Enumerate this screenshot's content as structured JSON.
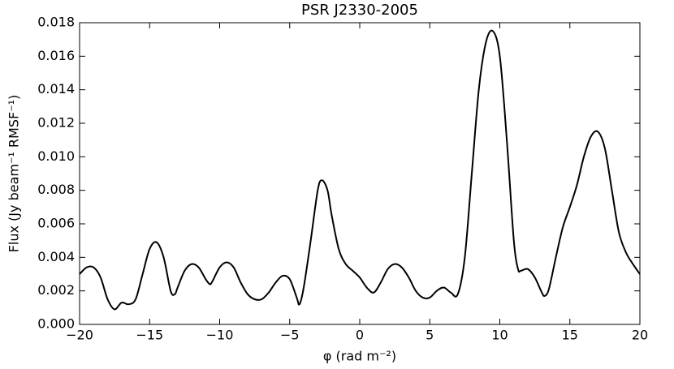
{
  "chart_data": {
    "type": "line",
    "title": "PSR J2330-2005",
    "xlabel": "φ (rad m⁻²)",
    "ylabel": "Flux (Jy beam⁻¹ RMSF⁻¹)",
    "x": [
      -20,
      -19.5,
      -19,
      -18.5,
      -18,
      -17.5,
      -17,
      -16.5,
      -16,
      -15.5,
      -15,
      -14.5,
      -14,
      -13.5,
      -13.2,
      -13,
      -12.5,
      -12,
      -11.5,
      -11,
      -10.7,
      -10.5,
      -10,
      -9.5,
      -9,
      -8.5,
      -8,
      -7.5,
      -7,
      -6.5,
      -6,
      -5.5,
      -5,
      -4.5,
      -4.3,
      -4,
      -3.5,
      -3,
      -2.7,
      -2.3,
      -2,
      -1.5,
      -1,
      -0.5,
      0,
      0.5,
      1,
      1.5,
      2,
      2.5,
      3,
      3.5,
      4,
      4.5,
      5,
      5.5,
      6,
      6.5,
      7,
      7.5,
      8,
      8.5,
      9,
      9.5,
      10,
      10.5,
      11,
      11.3,
      11.5,
      12,
      12.5,
      13,
      13.2,
      13.5,
      14,
      14.5,
      15,
      15.5,
      16,
      16.5,
      17,
      17.5,
      18,
      18.5,
      19,
      19.5,
      20
    ],
    "series": [
      {
        "name": "flux",
        "color": "#000000",
        "values": [
          0.003,
          0.0034,
          0.0034,
          0.0028,
          0.0015,
          0.0009,
          0.0013,
          0.0012,
          0.0015,
          0.003,
          0.0045,
          0.0049,
          0.004,
          0.002,
          0.0018,
          0.0022,
          0.0032,
          0.0036,
          0.0034,
          0.0027,
          0.0024,
          0.0026,
          0.0034,
          0.0037,
          0.0034,
          0.0025,
          0.0018,
          0.0015,
          0.0015,
          0.0019,
          0.0025,
          0.0029,
          0.0027,
          0.0016,
          0.0012,
          0.0022,
          0.005,
          0.008,
          0.0086,
          0.008,
          0.0065,
          0.0045,
          0.0036,
          0.0032,
          0.0028,
          0.0022,
          0.0019,
          0.0025,
          0.0033,
          0.0036,
          0.0034,
          0.0028,
          0.002,
          0.0016,
          0.0016,
          0.002,
          0.0022,
          0.0019,
          0.0018,
          0.004,
          0.009,
          0.014,
          0.0168,
          0.0175,
          0.016,
          0.011,
          0.005,
          0.0033,
          0.0032,
          0.0033,
          0.0028,
          0.0019,
          0.0017,
          0.0021,
          0.004,
          0.0058,
          0.007,
          0.0083,
          0.01,
          0.0112,
          0.0115,
          0.0105,
          0.008,
          0.0055,
          0.0043,
          0.0036,
          0.003
        ]
      }
    ],
    "xlim": [
      -20,
      20
    ],
    "xticks": [
      {
        "value": -20,
        "label": "−20"
      },
      {
        "value": -15,
        "label": "−15"
      },
      {
        "value": -10,
        "label": "−10"
      },
      {
        "value": -5,
        "label": "−5"
      },
      0,
      5,
      10,
      15,
      20
    ],
    "ylim": [
      0,
      0.018
    ],
    "yticks": [
      {
        "value": 0,
        "label": "0.000"
      },
      {
        "value": 0.002,
        "label": "0.002"
      },
      {
        "value": 0.004,
        "label": "0.004"
      },
      {
        "value": 0.006,
        "label": "0.006"
      },
      {
        "value": 0.008,
        "label": "0.008"
      },
      {
        "value": 0.01,
        "label": "0.010"
      },
      {
        "value": 0.012,
        "label": "0.012"
      },
      {
        "value": 0.014,
        "label": "0.014"
      },
      {
        "value": 0.016,
        "label": "0.016"
      },
      {
        "value": 0.018,
        "label": "0.018"
      }
    ],
    "grid": false
  }
}
